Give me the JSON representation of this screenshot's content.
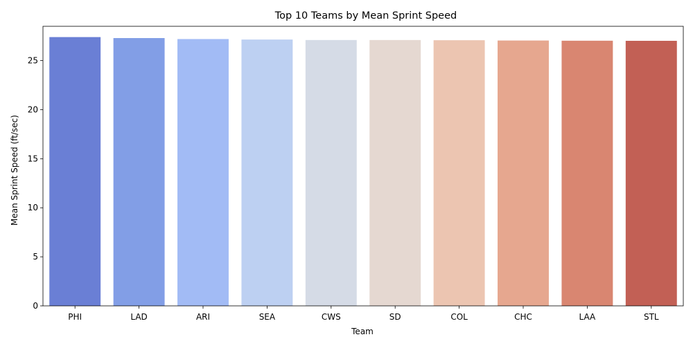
{
  "chart_data": {
    "type": "bar",
    "title": "Top 10 Teams by Mean Sprint Speed",
    "xlabel": "Team",
    "ylabel": "Mean Sprint Speed (ft/sec)",
    "categories": [
      "PHI",
      "LAD",
      "ARI",
      "SEA",
      "CWS",
      "SD",
      "COL",
      "CHC",
      "LAA",
      "STL"
    ],
    "values": [
      27.4,
      27.3,
      27.2,
      27.15,
      27.1,
      27.1,
      27.08,
      27.05,
      27.03,
      27.02
    ],
    "colors": [
      "#6a7fd5",
      "#829ee6",
      "#a2bbf5",
      "#bdd0f2",
      "#d5dbe6",
      "#e5d8d1",
      "#ecc5b1",
      "#e6a78f",
      "#d98671",
      "#c26055"
    ],
    "ylim": [
      0,
      28.5
    ],
    "yticks": [
      0,
      5,
      10,
      15,
      20,
      25
    ],
    "grid": false,
    "legend": "none"
  }
}
